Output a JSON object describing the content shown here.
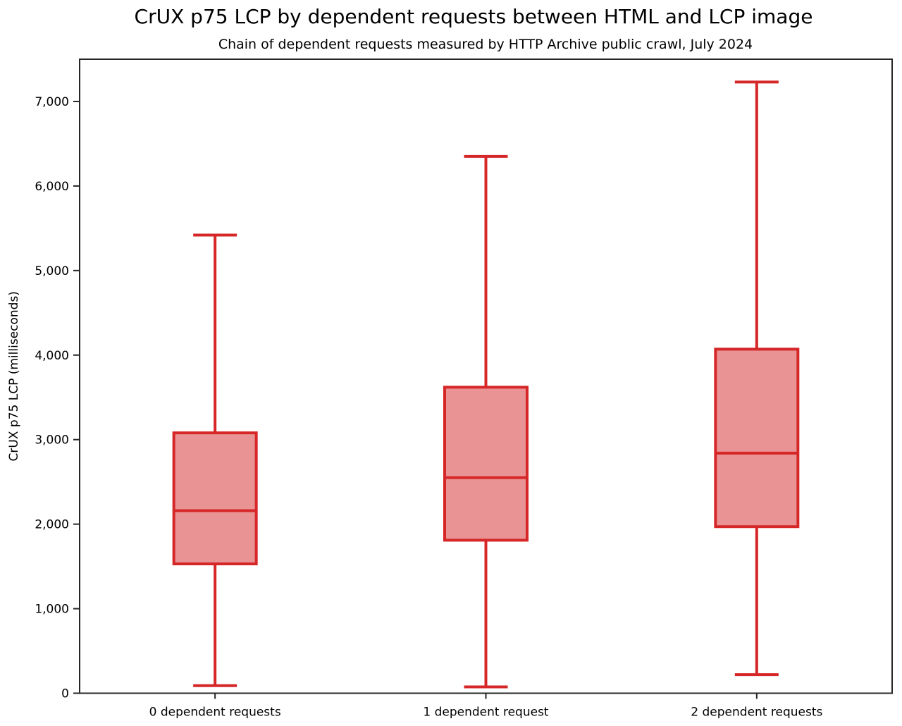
{
  "title": "CrUX p75 LCP by dependent requests between HTML and LCP image",
  "subtitle": "Chain of dependent requests measured by HTTP Archive public crawl, July 2024",
  "chart_data": {
    "type": "boxplot",
    "categories": [
      "0 dependent requests",
      "1 dependent request",
      "2 dependent requests"
    ],
    "series": [
      {
        "label": "0 dependent requests",
        "whisker_low": 90,
        "q1": 1530,
        "median": 2160,
        "q3": 3080,
        "whisker_high": 5420
      },
      {
        "label": "1 dependent request",
        "whisker_low": 75,
        "q1": 1810,
        "median": 2550,
        "q3": 3620,
        "whisker_high": 6350
      },
      {
        "label": "2 dependent requests",
        "whisker_low": 220,
        "q1": 1970,
        "median": 2840,
        "q3": 4070,
        "whisker_high": 7230
      }
    ],
    "ylabel": "CrUX p75 LCP (milliseconds)",
    "ylim": [
      0,
      7500
    ],
    "yticks": [
      0,
      1000,
      2000,
      3000,
      4000,
      5000,
      6000,
      7000
    ],
    "ytick_labels": [
      "0",
      "1,000",
      "2,000",
      "3,000",
      "4,000",
      "5,000",
      "6,000",
      "7,000"
    ],
    "legend": "none",
    "grid": "off",
    "colors": {
      "box_edge": "#d62728",
      "box_fill": "#ea9394",
      "median": "#d62728",
      "spine": "#262626",
      "text": "#000000"
    }
  }
}
